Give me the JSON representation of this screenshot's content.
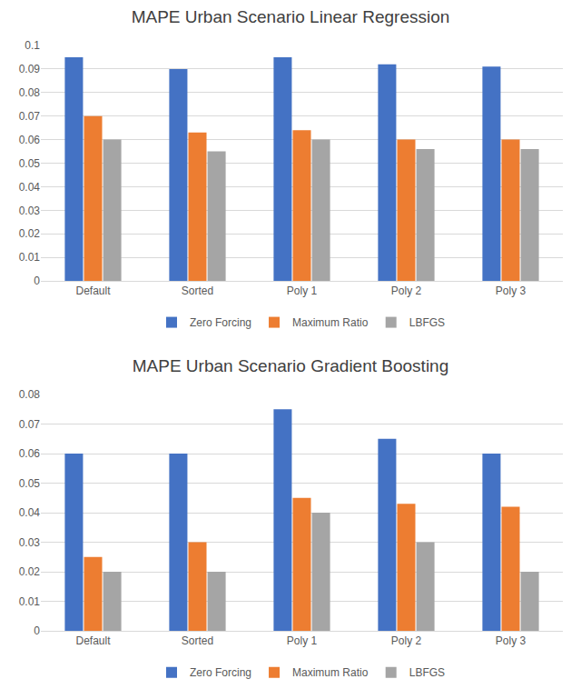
{
  "chart_data": [
    {
      "type": "bar",
      "title": "MAPE Urban Scenario Linear Regression",
      "categories": [
        "Default",
        "Sorted",
        "Poly 1",
        "Poly 2",
        "Poly 3"
      ],
      "series": [
        {
          "name": "Zero Forcing",
          "color": "#4472c4",
          "values": [
            0.095,
            0.09,
            0.095,
            0.092,
            0.091
          ]
        },
        {
          "name": "Maximum Ratio",
          "color": "#ed7d31",
          "values": [
            0.07,
            0.063,
            0.064,
            0.06,
            0.06
          ]
        },
        {
          "name": "LBFGS",
          "color": "#a5a5a5",
          "values": [
            0.06,
            0.055,
            0.06,
            0.056,
            0.056
          ]
        }
      ],
      "ylim": [
        0,
        0.1
      ],
      "yticks": [
        0,
        0.01,
        0.02,
        0.03,
        0.04,
        0.05,
        0.06,
        0.07,
        0.08,
        0.09,
        0.1
      ],
      "grid": true,
      "legend": "bottom"
    },
    {
      "type": "bar",
      "title": "MAPE Urban Scenario Gradient Boosting",
      "categories": [
        "Default",
        "Sorted",
        "Poly 1",
        "Poly 2",
        "Poly 3"
      ],
      "series": [
        {
          "name": "Zero Forcing",
          "color": "#4472c4",
          "values": [
            0.06,
            0.06,
            0.075,
            0.065,
            0.06
          ]
        },
        {
          "name": "Maximum Ratio",
          "color": "#ed7d31",
          "values": [
            0.025,
            0.03,
            0.045,
            0.043,
            0.042
          ]
        },
        {
          "name": "LBFGS",
          "color": "#a5a5a5",
          "values": [
            0.02,
            0.02,
            0.04,
            0.03,
            0.02
          ]
        }
      ],
      "ylim": [
        0,
        0.08
      ],
      "yticks": [
        0,
        0.01,
        0.02,
        0.03,
        0.04,
        0.05,
        0.06,
        0.07,
        0.08
      ],
      "grid": true,
      "legend": "bottom"
    }
  ]
}
